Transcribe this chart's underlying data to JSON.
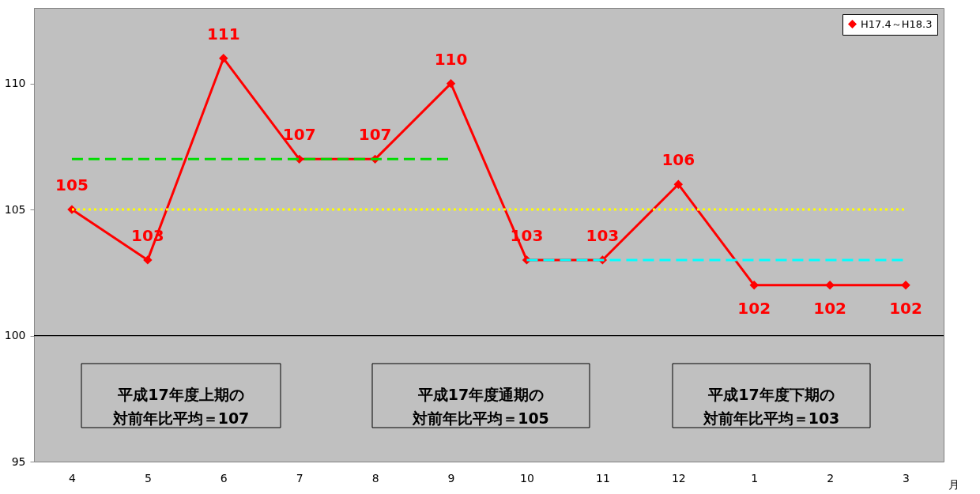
{
  "chart_data": {
    "type": "line",
    "xlabel": "月",
    "categories": [
      "4",
      "5",
      "6",
      "7",
      "8",
      "9",
      "10",
      "11",
      "12",
      "1",
      "2",
      "3"
    ],
    "series": [
      {
        "name": "H17.4～H18.3",
        "color": "#ff0000",
        "marker": "diamond",
        "values": [
          105,
          103,
          111,
          107,
          107,
          110,
          103,
          103,
          106,
          102,
          102,
          102
        ],
        "value_labels": [
          "105",
          "103",
          "111",
          "107",
          "107",
          "110",
          "103",
          "103",
          "106",
          "102",
          "102",
          "102"
        ]
      },
      {
        "type": "line",
        "color": "#00dd00",
        "line_style": "dashed",
        "marker": "none",
        "x": [
          "4",
          "5",
          "6",
          "7",
          "8",
          "9"
        ],
        "values": [
          107,
          107,
          107,
          107,
          107,
          107
        ]
      },
      {
        "type": "line",
        "color": "#ffff00",
        "line_style": "dotted",
        "marker": "none",
        "values": [
          105,
          105,
          105,
          105,
          105,
          105,
          105,
          105,
          105,
          105,
          105,
          105
        ]
      },
      {
        "type": "line",
        "color": "#00ffff",
        "line_style": "dashed",
        "marker": "none",
        "x": [
          "10",
          "11",
          "12",
          "1",
          "2",
          "3"
        ],
        "values": [
          103,
          103,
          103,
          103,
          103,
          103
        ]
      }
    ],
    "ylim": [
      95,
      113
    ],
    "yticks": [
      95,
      100,
      105,
      110
    ],
    "legend": "top right",
    "ref_lines": [
      {
        "axis": "y",
        "value": 100,
        "color": "#000000"
      }
    ],
    "annotations": [
      "平成17年度上期の対前年比平均＝107",
      "平成17年度通期の対前年比平均＝105",
      "平成17年度下期の対前年比平均＝103"
    ]
  }
}
